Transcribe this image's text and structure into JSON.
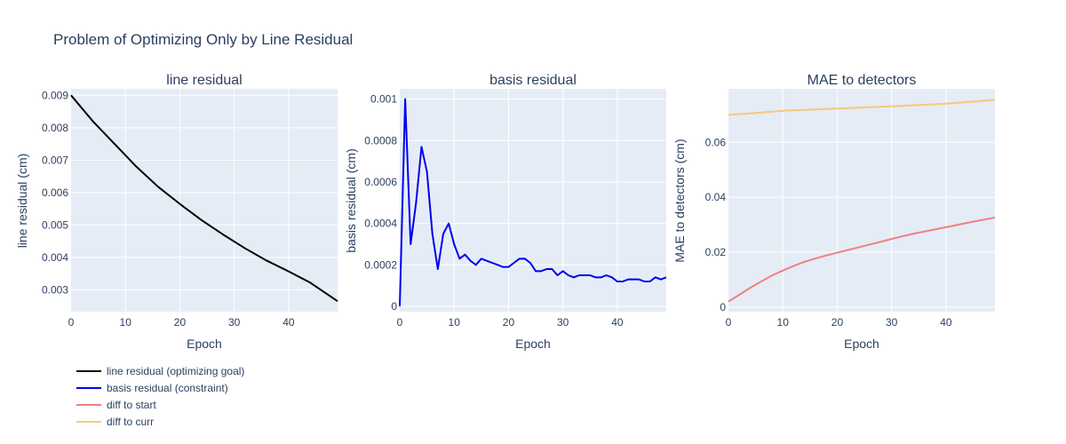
{
  "chart_data": {
    "title": "Problem of Optimizing Only by Line Residual",
    "legend": {
      "placement": "bottom-left",
      "entries": [
        {
          "label": "line residual (optimizing goal)",
          "color": "#000000"
        },
        {
          "label": "basis residual (constraint)",
          "color": "#0000ee"
        },
        {
          "label": "diff to start",
          "color": "#f08080"
        },
        {
          "label": "diff to curr",
          "color": "#f5c97a"
        }
      ]
    },
    "subplots": [
      {
        "type": "line",
        "title": "line residual",
        "xlabel": "Epoch",
        "ylabel": "line residual (cm)",
        "xlim": [
          0,
          49
        ],
        "ylim": [
          0.0023,
          0.0092
        ],
        "xticks": [
          0,
          10,
          20,
          30,
          40
        ],
        "yticks": [
          0.003,
          0.004,
          0.005,
          0.006,
          0.007,
          0.008,
          0.009
        ],
        "ytick_labels": [
          "0.003",
          "0.004",
          "0.005",
          "0.006",
          "0.007",
          "0.008",
          "0.009"
        ],
        "grid": true,
        "series": [
          {
            "color": "#000000",
            "x": [
              0,
              4,
              8,
              12,
              16,
              20,
              24,
              28,
              32,
              36,
              40,
              44,
              49
            ],
            "values": [
              0.009,
              0.0082,
              0.0075,
              0.0068,
              0.00618,
              0.00565,
              0.00515,
              0.0047,
              0.00428,
              0.0039,
              0.00357,
              0.00322,
              0.00265
            ]
          }
        ]
      },
      {
        "type": "line",
        "title": "basis residual",
        "xlabel": "Epoch",
        "ylabel": "basis residual (cm)",
        "xlim": [
          0,
          49
        ],
        "ylim": [
          -3e-05,
          0.00105
        ],
        "xticks": [
          0,
          10,
          20,
          30,
          40
        ],
        "yticks": [
          0,
          0.0002,
          0.0004,
          0.0006,
          0.0008,
          0.001
        ],
        "ytick_labels": [
          "0",
          "0.0002",
          "0.0004",
          "0.0006",
          "0.0008",
          "0.001"
        ],
        "grid": true,
        "series": [
          {
            "color": "#0000ee",
            "x": [
              0,
              1,
              2,
              3,
              4,
              5,
              6,
              7,
              8,
              9,
              10,
              11,
              12,
              13,
              14,
              15,
              16,
              17,
              18,
              19,
              20,
              21,
              22,
              23,
              24,
              25,
              26,
              27,
              28,
              29,
              30,
              31,
              32,
              33,
              34,
              35,
              36,
              37,
              38,
              39,
              40,
              41,
              42,
              43,
              44,
              45,
              46,
              47,
              48,
              49
            ],
            "values": [
              0.0,
              0.001,
              0.0003,
              0.0005,
              0.00077,
              0.00065,
              0.00035,
              0.00018,
              0.00035,
              0.0004,
              0.0003,
              0.00023,
              0.00025,
              0.00022,
              0.0002,
              0.00023,
              0.00022,
              0.00021,
              0.0002,
              0.00019,
              0.00019,
              0.00021,
              0.00023,
              0.00023,
              0.00021,
              0.00017,
              0.00017,
              0.00018,
              0.00018,
              0.00015,
              0.00017,
              0.00015,
              0.00014,
              0.00015,
              0.00015,
              0.00015,
              0.00014,
              0.00014,
              0.00015,
              0.00014,
              0.00012,
              0.00012,
              0.00013,
              0.00013,
              0.00013,
              0.00012,
              0.00012,
              0.00014,
              0.00013,
              0.00014
            ]
          }
        ]
      },
      {
        "type": "line",
        "title": "MAE to detectors",
        "xlabel": "Epoch",
        "ylabel": "MAE to detectors (cm)",
        "xlim": [
          0,
          49
        ],
        "ylim": [
          -0.002,
          0.0795
        ],
        "xticks": [
          0,
          10,
          20,
          30,
          40
        ],
        "yticks": [
          0,
          0.02,
          0.04,
          0.06
        ],
        "ytick_labels": [
          "0",
          "0.02",
          "0.04",
          "0.06"
        ],
        "grid": true,
        "series": [
          {
            "color": "#f08080",
            "x": [
              0,
              2,
              4,
              6,
              8,
              10,
              12,
              14,
              16,
              18,
              20,
              22,
              24,
              26,
              28,
              30,
              32,
              34,
              36,
              38,
              40,
              42,
              44,
              46,
              49
            ],
            "values": [
              0.002,
              0.0045,
              0.007,
              0.0093,
              0.0115,
              0.0133,
              0.015,
              0.0165,
              0.0177,
              0.0188,
              0.0198,
              0.0208,
              0.0218,
              0.0228,
              0.0238,
              0.0248,
              0.0258,
              0.0267,
              0.0275,
              0.0283,
              0.0291,
              0.0299,
              0.0307,
              0.0315,
              0.0326
            ]
          },
          {
            "color": "#f5c97a",
            "x": [
              0,
              5,
              10,
              15,
              20,
              25,
              30,
              35,
              40,
              45,
              49
            ],
            "values": [
              0.07,
              0.0707,
              0.0715,
              0.0719,
              0.0723,
              0.0727,
              0.0731,
              0.0736,
              0.0741,
              0.0748,
              0.0755
            ]
          }
        ]
      }
    ]
  }
}
